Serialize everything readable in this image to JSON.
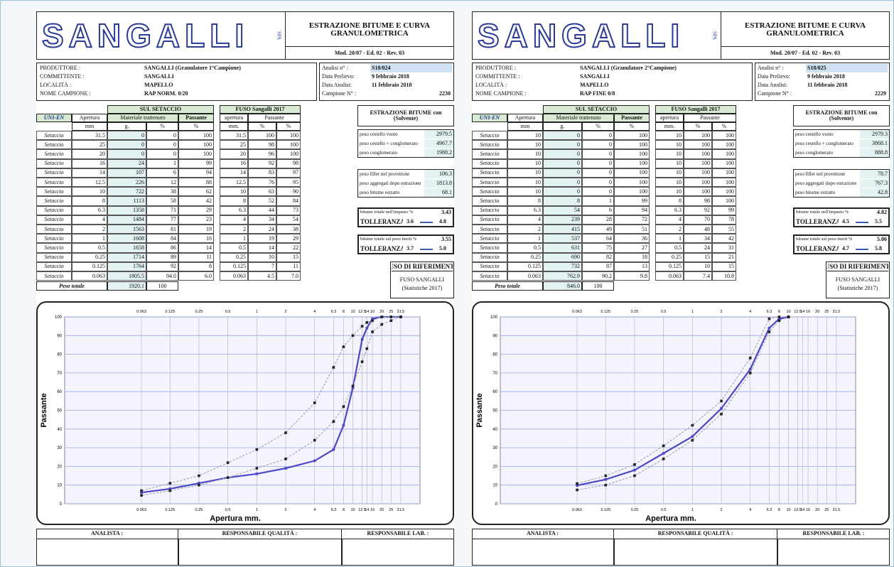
{
  "sheets": [
    {
      "header": {
        "logo": "SANGALLI",
        "spa": "SPA",
        "title": "ESTRAZIONE BITUME E CURVA GRANULOMETRICA",
        "model": "Mod. 20/07 - Ed. 02 - Rev. 03"
      },
      "info": [
        {
          "label": "PRODUTTORE :",
          "value": "SANGALLI (Granulatore 1°Campione)"
        },
        {
          "label": "COMMITTENTE :",
          "value": "SANGALLI"
        },
        {
          "label": "LOCALITÀ :",
          "value": "MAPELLO"
        },
        {
          "label": "NOME CAMPIONE :",
          "value": "RAP NORM. 0/20"
        }
      ],
      "analysis": [
        {
          "label": "Analisi n° :",
          "value": "S18/024"
        },
        {
          "label": "Data Prelievo:",
          "value": "9 febbraio 2018"
        },
        {
          "label": "Data Analisi:",
          "value": "11 febbraio 2018"
        },
        {
          "label": "Campione N° :",
          "value": "2230"
        }
      ],
      "table": {
        "headers": {
          "sul": "SUL SETACCIO",
          "uni": "UNI-EN",
          "apertura": "Apertura",
          "trattenuto": "Materiale trattenuto",
          "passante": "Passante",
          "units": [
            "mm",
            "g.",
            "%",
            "%"
          ],
          "fuso": "FUSO Sangalli 2017",
          "fuso_apertura": "apertura",
          "fuso_passante": "Passante",
          "fuso_units": [
            "mm.",
            "%",
            "%"
          ]
        },
        "rows": [
          [
            "Setaccio",
            "31.5",
            "0",
            "0",
            "100",
            "31.5",
            "100",
            "100"
          ],
          [
            "Setaccio",
            "25",
            "0",
            "0",
            "100",
            "25",
            "98",
            "100"
          ],
          [
            "Setaccio",
            "20",
            "0",
            "0",
            "100",
            "20",
            "96",
            "100"
          ],
          [
            "Setaccio",
            "16",
            "24",
            "1",
            "99",
            "16",
            "92",
            "98"
          ],
          [
            "Setaccio",
            "14",
            "107",
            "6",
            "94",
            "14",
            "83",
            "97"
          ],
          [
            "Setaccio",
            "12.5",
            "226",
            "12",
            "88",
            "12.5",
            "76",
            "95"
          ],
          [
            "Setaccio",
            "10",
            "722",
            "38",
            "62",
            "10",
            "63",
            "90"
          ],
          [
            "Setaccio",
            "8",
            "1113",
            "58",
            "42",
            "8",
            "52",
            "84"
          ],
          [
            "Setaccio",
            "6.3",
            "1358",
            "71",
            "29",
            "6.3",
            "44",
            "73"
          ],
          [
            "Setaccio",
            "4",
            "1484",
            "77",
            "23",
            "4",
            "34",
            "54"
          ],
          [
            "Setaccio",
            "2",
            "1563",
            "81",
            "19",
            "2",
            "24",
            "38"
          ],
          [
            "Setaccio",
            "1",
            "1608",
            "84",
            "16",
            "1",
            "19",
            "29"
          ],
          [
            "Setaccio",
            "0.5",
            "1658",
            "86",
            "14",
            "0.5",
            "14",
            "22"
          ],
          [
            "Setaccio",
            "0.25",
            "1714",
            "89",
            "11",
            "0.25",
            "10",
            "15"
          ],
          [
            "Setaccio",
            "0.125",
            "1764",
            "92",
            "8",
            "0.125",
            "7",
            "11"
          ],
          [
            "Setaccio",
            "0.063",
            "1805.5",
            "94.0",
            "6.0",
            "0.063",
            "4.5",
            "7.0"
          ]
        ],
        "total": {
          "label": "Peso totale",
          "g": "1920.1",
          "pct": "100"
        }
      },
      "extraction": {
        "title": "ESTRAZIONE BITUME con (Solvente)",
        "group1": [
          {
            "label": "peso cestello vuoto",
            "value": "2979.5"
          },
          {
            "label": "peso cestello + conglomerato",
            "value": "4967.7"
          },
          {
            "label": "peso conglomerato",
            "value": "1988.2"
          }
        ],
        "group2": [
          {
            "label": "peso filler nel provettone",
            "value": "106.3"
          },
          {
            "label": "peso aggregati dopo estrazione",
            "value": "1813.8"
          },
          {
            "label": "peso bitume estratto",
            "value": "68.1"
          }
        ],
        "result1": {
          "label": "bitume totale nell'impasto %",
          "value": "3.43",
          "tol_label": "TOLLERANZA",
          "tol_min": "3.6",
          "tol_max": "4.8"
        },
        "result2": {
          "label": "bitume totale sul peso inerti %",
          "value": "3.55",
          "tol_label": "TOLLERANZA",
          "tol_min": "3.7",
          "tol_max": "5.0"
        }
      },
      "reference": {
        "title": "FUSO DI RIFERIMENTO",
        "name": "FUSO SANGALLI",
        "note": "(Statistiche 2017)"
      },
      "chart": {
        "ylabel": "Passante",
        "xlabel": "Apertura mm.",
        "log_x": true,
        "grid": true,
        "xlim": [
          0.01,
          50
        ],
        "ylim": [
          0,
          100
        ],
        "yticks": [
          0,
          10,
          20,
          30,
          40,
          50,
          60,
          70,
          80,
          90,
          100
        ],
        "xticks": [
          0.063,
          0.125,
          0.25,
          0.5,
          1,
          2,
          4,
          6.3,
          8,
          10,
          12.5,
          14,
          16,
          20,
          25,
          31.5
        ],
        "colors": {
          "passante": "#4a48c6",
          "fuso": "#a8a8a8"
        }
      },
      "footer": [
        "ANALISTA :",
        "RESPONSABILE QUALITÀ :",
        "RESPONSABILE LAB. :"
      ]
    },
    {
      "header": {
        "logo": "SANGALLI",
        "spa": "SPA",
        "title": "ESTRAZIONE BITUME E CURVA GRANULOMETRICA",
        "model": "Mod. 20/07 - Ed. 02 - Rev. 03"
      },
      "info": [
        {
          "label": "PRODUTTORE :",
          "value": "SANGALLI (Granulatore 2°Campione)"
        },
        {
          "label": "COMMITTENTE :",
          "value": "SANGALLI"
        },
        {
          "label": "LOCALITÀ :",
          "value": "MAPELLO"
        },
        {
          "label": "NOME CAMPIONE :",
          "value": "RAP FINE 0/8"
        }
      ],
      "analysis": [
        {
          "label": "Analisi n° :",
          "value": "S18/025"
        },
        {
          "label": "Data Prelievo:",
          "value": "9 febbraio 2018"
        },
        {
          "label": "Data Analisi:",
          "value": "11 febbraio 2018"
        },
        {
          "label": "Campione N° :",
          "value": "2229"
        }
      ],
      "table": {
        "headers": {
          "sul": "SUL SETACCIO",
          "uni": "UNI-EN",
          "apertura": "Apertura",
          "trattenuto": "Materiale trattenuto",
          "passante": "Passante",
          "units": [
            "mm",
            "g.",
            "%",
            "%"
          ],
          "fuso": "FUSO Sangalli 2017",
          "fuso_apertura": "apertura",
          "fuso_passante": "Passante",
          "fuso_units": [
            "mm.",
            "%",
            "%"
          ]
        },
        "rows": [
          [
            "Setaccio",
            "10",
            "0",
            "0",
            "100",
            "10",
            "100",
            "100"
          ],
          [
            "Setaccio",
            "10",
            "0",
            "0",
            "100",
            "10",
            "100",
            "100"
          ],
          [
            "Setaccio",
            "10",
            "0",
            "0",
            "100",
            "10",
            "100",
            "100"
          ],
          [
            "Setaccio",
            "10",
            "0",
            "0",
            "100",
            "10",
            "100",
            "100"
          ],
          [
            "Setaccio",
            "10",
            "0",
            "0",
            "100",
            "10",
            "100",
            "100"
          ],
          [
            "Setaccio",
            "10",
            "0",
            "0",
            "100",
            "10",
            "100",
            "100"
          ],
          [
            "Setaccio",
            "10",
            "0",
            "0",
            "100",
            "10",
            "100",
            "100"
          ],
          [
            "Setaccio",
            "8",
            "8",
            "1",
            "99",
            "8",
            "98",
            "100"
          ],
          [
            "Setaccio",
            "6.3",
            "54",
            "6",
            "94",
            "6.3",
            "92",
            "99"
          ],
          [
            "Setaccio",
            "4",
            "239",
            "28",
            "72",
            "4",
            "70",
            "78"
          ],
          [
            "Setaccio",
            "2",
            "415",
            "49",
            "51",
            "2",
            "48",
            "55"
          ],
          [
            "Setaccio",
            "1",
            "537",
            "64",
            "36",
            "1",
            "34",
            "42"
          ],
          [
            "Setaccio",
            "0.5",
            "631",
            "75",
            "27",
            "0.5",
            "24",
            "31"
          ],
          [
            "Setaccio",
            "0.25",
            "690",
            "82",
            "18",
            "0.25",
            "15",
            "21"
          ],
          [
            "Setaccio",
            "0.125",
            "732",
            "87",
            "13",
            "0.125",
            "10",
            "15"
          ],
          [
            "Setaccio",
            "0.063",
            "762.9",
            "90.2",
            "9.8",
            "0.063",
            "7.4",
            "10.8"
          ]
        ],
        "total": {
          "label": "Peso totale",
          "g": "846.0",
          "pct": "100"
        }
      },
      "extraction": {
        "title": "ESTRAZIONE BITUME con (Solvente)",
        "group1": [
          {
            "label": "peso cestello vuoto",
            "value": "2979.3"
          },
          {
            "label": "peso cestello + conglomerato",
            "value": "3868.1"
          },
          {
            "label": "peso conglomerato",
            "value": "888.8"
          }
        ],
        "group2": [
          {
            "label": "peso filler nel provettone",
            "value": "78.7"
          },
          {
            "label": "peso aggregati dopo estrazione",
            "value": "767.3"
          },
          {
            "label": "peso bitume estratto",
            "value": "42.8"
          }
        ],
        "result1": {
          "label": "bitume totale nell'impasto %",
          "value": "4.82",
          "tol_label": "TOLLERANZA",
          "tol_min": "4.5",
          "tol_max": "5.5"
        },
        "result2": {
          "label": "bitume totale sul peso inerti %",
          "value": "5.06",
          "tol_label": "TOLLERANZA",
          "tol_min": "4.7",
          "tol_max": "5.8"
        }
      },
      "reference": {
        "title": "FUSO DI RIFERIMENTO",
        "name": "FUSO SANGALLI",
        "note": "(Statistiche 2017)"
      },
      "chart": {
        "ylabel": "Passante",
        "xlabel": "Apertura mm.",
        "log_x": true,
        "grid": true,
        "xlim": [
          0.01,
          50
        ],
        "ylim": [
          0,
          100
        ],
        "yticks": [
          0,
          10,
          20,
          30,
          40,
          50,
          60,
          70,
          80,
          90,
          100
        ],
        "xticks": [
          0.063,
          0.125,
          0.25,
          0.5,
          1,
          2,
          4,
          6.3,
          8,
          10,
          12.5,
          14,
          16,
          20,
          25,
          31.5
        ],
        "colors": {
          "passante": "#4a48c6",
          "fuso": "#a8a8a8"
        }
      },
      "footer": [
        "ANALISTA :",
        "RESPONSABILE QUALITÀ :",
        "RESPONSABILE LAB. :"
      ]
    }
  ]
}
